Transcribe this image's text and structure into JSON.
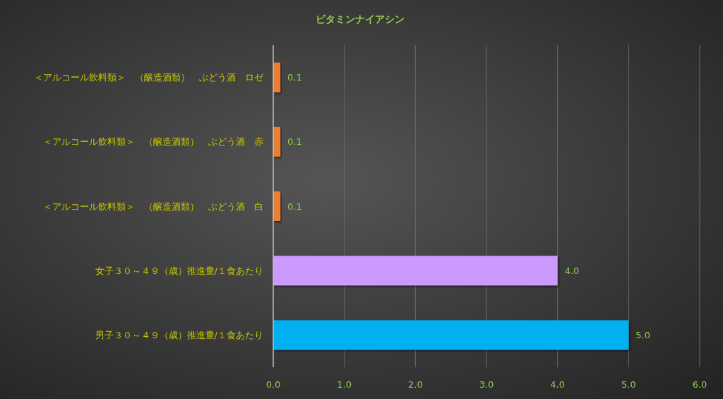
{
  "chart_data": {
    "type": "bar",
    "orientation": "horizontal",
    "title": "ビタミンナイアシン",
    "categories": [
      "＜アルコール飲料類＞　（醸造酒類）　ぶどう酒　ロゼ",
      "＜アルコール飲料類＞　（醸造酒類）　ぶどう酒　赤",
      "＜アルコール飲料類＞　（醸造酒類）　ぶどう酒　白",
      "女子３０～４９（歳）推進量/１食あたり",
      "男子３０～４９（歳）推進量/１食あたり"
    ],
    "values": [
      0.1,
      0.1,
      0.1,
      4.0,
      5.0
    ],
    "colors": [
      "#ed7d31",
      "#ed7d31",
      "#ed7d31",
      "#cc99ff",
      "#00b0f0"
    ],
    "xlim": [
      0,
      6
    ],
    "xticks": [
      {
        "value": 0,
        "label": "0.0"
      },
      {
        "value": 1,
        "label": "1.0"
      },
      {
        "value": 2,
        "label": "2.0"
      },
      {
        "value": 3,
        "label": "3.0"
      },
      {
        "value": 4,
        "label": "4.0"
      },
      {
        "value": 5,
        "label": "5.0"
      },
      {
        "value": 6,
        "label": "6.0"
      }
    ],
    "value_labels": [
      "0.1",
      "0.1",
      "0.1",
      "4.0",
      "5.0"
    ],
    "grid": "x"
  }
}
